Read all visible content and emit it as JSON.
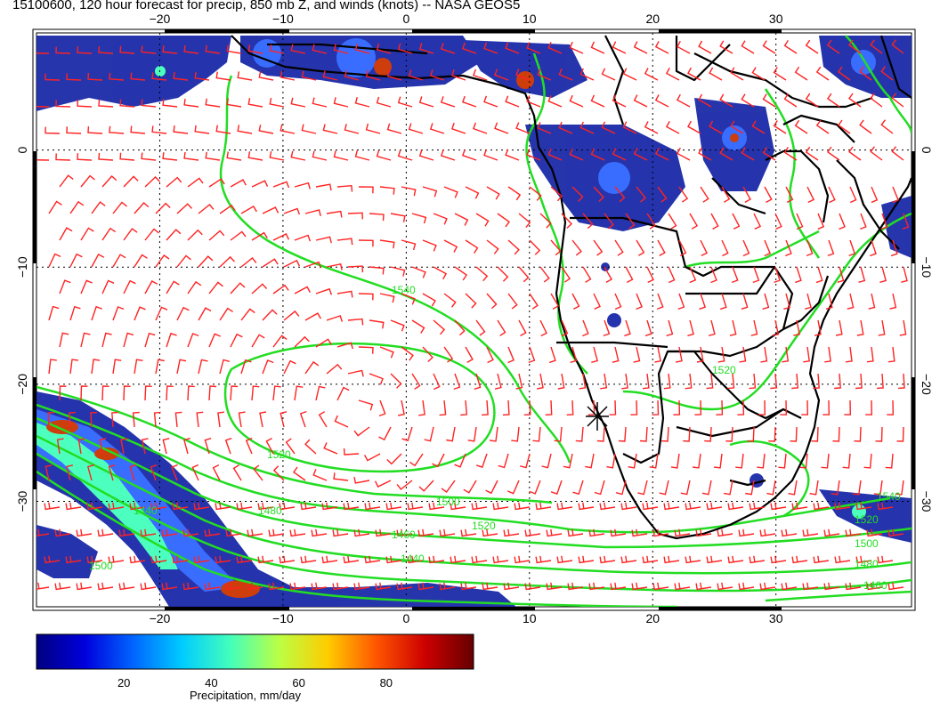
{
  "title": "15100600, 120 hour forecast for precip, 850 mb Z, and winds (knots) -- NASA GEOS5",
  "map": {
    "lon_range": [
      -30,
      41
    ],
    "lat_range": [
      -39,
      10
    ],
    "lon_ticks": [
      -20,
      -10,
      0,
      10,
      20,
      30
    ],
    "lon_tick_labels": [
      "−20",
      "−10",
      "0",
      "10",
      "20",
      "30"
    ],
    "lat_ticks": [
      0,
      -10,
      -20,
      -30
    ],
    "lat_tick_labels": [
      "0",
      "−10",
      "−20",
      "−30"
    ],
    "gridlines": "dotted",
    "contour_color": "#22dd22",
    "wind_barb_color": "#ff2222",
    "coastline_color": "#000000",
    "contour_labels": [
      "1540",
      "1520",
      "1500",
      "1480",
      "1460",
      "1440",
      "1540",
      "1520",
      "1500",
      "1480",
      "1460",
      "1440",
      "1520",
      "1500",
      "1520"
    ]
  },
  "colorbar": {
    "label": "Precipitation, mm/day",
    "range": [
      0,
      100
    ],
    "ticks": [
      20,
      40,
      60,
      80
    ],
    "tick_labels": [
      "20",
      "40",
      "60",
      "80"
    ],
    "colors": [
      "#000080",
      "#0000dd",
      "#0066ff",
      "#00ccff",
      "#44ffbb",
      "#bbff44",
      "#ffcc00",
      "#ff5500",
      "#cc0000",
      "#660000"
    ]
  }
}
